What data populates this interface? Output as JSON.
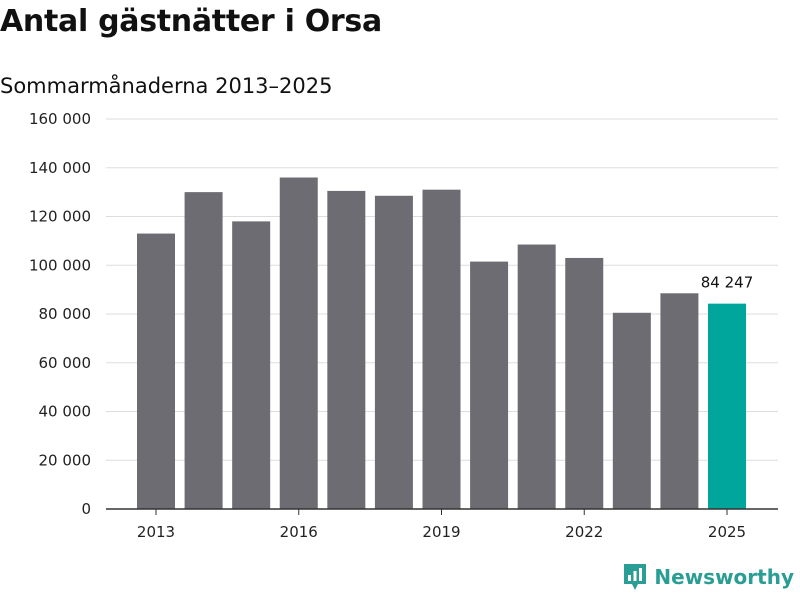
{
  "title": "Antal gästnätter i Orsa",
  "subtitle": "Sommarmånaderna 2013–2025",
  "brand": {
    "name": "Newsworthy",
    "icon": "newsworthy-logo-icon",
    "color": "#2a9d95"
  },
  "colors": {
    "bar": "#6d6c72",
    "highlight": "#00a59b",
    "grid": "#dddddd",
    "axis": "#333333"
  },
  "chart_data": {
    "type": "bar",
    "title": "Antal gästnätter i Orsa",
    "subtitle": "Sommarmånaderna 2013–2025",
    "xlabel": "",
    "ylabel": "",
    "categories": [
      "2013",
      "2014",
      "2015",
      "2016",
      "2017",
      "2018",
      "2019",
      "2020",
      "2021",
      "2022",
      "2023",
      "2024",
      "2025"
    ],
    "values": [
      113000,
      130000,
      118000,
      136000,
      130500,
      128500,
      131000,
      101500,
      108500,
      103000,
      80500,
      88500,
      84247
    ],
    "highlight_index": 12,
    "ylim": [
      0,
      160000
    ],
    "yticks": [
      0,
      20000,
      40000,
      60000,
      80000,
      100000,
      120000,
      140000,
      160000
    ],
    "ytick_labels": [
      "0",
      "20 000",
      "40 000",
      "60 000",
      "80 000",
      "100 000",
      "120 000",
      "140 000",
      "160 000"
    ],
    "xtick_labels": [
      "2013",
      "2016",
      "2019",
      "2022",
      "2025"
    ],
    "xtick_indices": [
      0,
      3,
      6,
      9,
      12
    ],
    "data_labels": [
      {
        "index": 12,
        "text": "84 247"
      }
    ],
    "grid": true,
    "legend": "none"
  }
}
